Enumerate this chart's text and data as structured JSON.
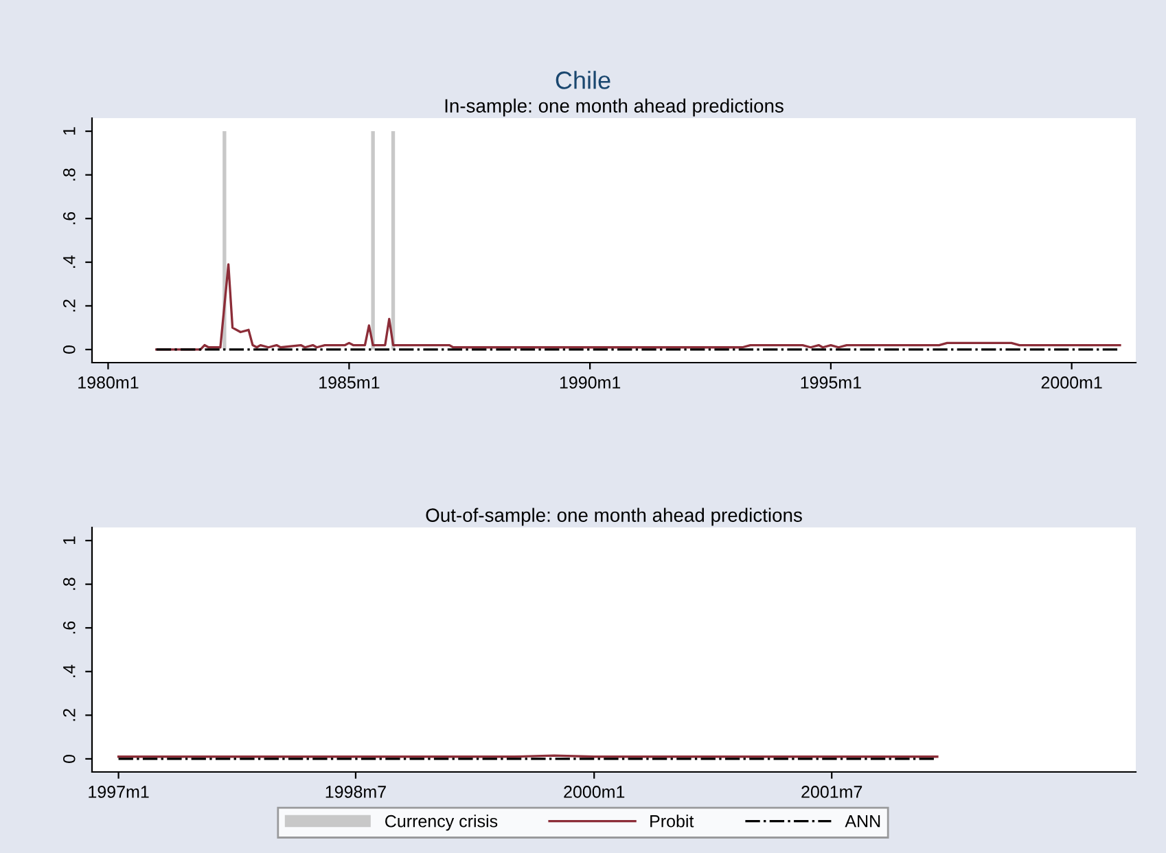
{
  "chart_data": [
    {
      "type": "line",
      "title": "Chile",
      "subtitle": "In-sample: one month ahead predictions",
      "xlim": [
        "1979-09",
        "2001-05"
      ],
      "xticks": [
        {
          "value": "1980-01",
          "label": "1980m1"
        },
        {
          "value": "1985-01",
          "label": "1985m1"
        },
        {
          "value": "1990-01",
          "label": "1990m1"
        },
        {
          "value": "1995-01",
          "label": "1995m1"
        },
        {
          "value": "2000-01",
          "label": "2000m1"
        }
      ],
      "ylim": [
        -0.06,
        1.06
      ],
      "yticks": [
        {
          "value": 0,
          "label": "0"
        },
        {
          "value": 0.2,
          "label": ".2"
        },
        {
          "value": 0.4,
          "label": ".4"
        },
        {
          "value": 0.6,
          "label": ".6"
        },
        {
          "value": 0.8,
          "label": ".8"
        },
        {
          "value": 1,
          "label": "1"
        }
      ],
      "grid": false,
      "legend": "bottom",
      "series": [
        {
          "name": "Currency crisis",
          "type": "bar",
          "color": "#c8c8c8",
          "x": [
            "1982-06",
            "1985-07",
            "1985-12"
          ],
          "values": [
            1,
            1,
            1
          ]
        },
        {
          "name": "Probit",
          "color": "#8c2d38",
          "line_style": "solid",
          "x": [
            "1981-01",
            "1981-12",
            "1982-01",
            "1982-02",
            "1982-05",
            "1982-07",
            "1982-08",
            "1982-10",
            "1982-12",
            "1983-01",
            "1983-02",
            "1983-03",
            "1983-05",
            "1983-07",
            "1983-08",
            "1984-01",
            "1984-02",
            "1984-04",
            "1984-05",
            "1984-07",
            "1984-12",
            "1985-01",
            "1985-02",
            "1985-05",
            "1985-06",
            "1985-07",
            "1985-10",
            "1985-11",
            "1985-12",
            "1987-02",
            "1987-03",
            "1993-03",
            "1993-05",
            "1994-06",
            "1994-08",
            "1994-10",
            "1994-11",
            "1995-01",
            "1995-03",
            "1995-05",
            "1997-04",
            "1997-06",
            "1998-10",
            "1998-12",
            "2001-01"
          ],
          "values": [
            0.0,
            0.0,
            0.02,
            0.01,
            0.01,
            0.39,
            0.1,
            0.08,
            0.09,
            0.02,
            0.01,
            0.02,
            0.01,
            0.02,
            0.01,
            0.02,
            0.01,
            0.02,
            0.01,
            0.02,
            0.02,
            0.03,
            0.02,
            0.02,
            0.11,
            0.02,
            0.02,
            0.14,
            0.02,
            0.02,
            0.01,
            0.01,
            0.02,
            0.02,
            0.01,
            0.02,
            0.01,
            0.02,
            0.01,
            0.02,
            0.02,
            0.03,
            0.03,
            0.02,
            0.02
          ]
        },
        {
          "name": "ANN",
          "color": "#000000",
          "line_style": "dashdot",
          "x": [
            "1981-01",
            "2001-01"
          ],
          "values": [
            0,
            0
          ]
        }
      ]
    },
    {
      "type": "line",
      "title": "Out-of-sample: one month ahead predictions",
      "xlim": [
        "1996-11",
        "2003-06"
      ],
      "xticks": [
        {
          "value": "1997-01",
          "label": "1997m1"
        },
        {
          "value": "1998-07",
          "label": "1998m7"
        },
        {
          "value": "2000-01",
          "label": "2000m1"
        },
        {
          "value": "2001-07",
          "label": "2001m7"
        }
      ],
      "ylim": [
        -0.06,
        1.06
      ],
      "yticks": [
        {
          "value": 0,
          "label": "0"
        },
        {
          "value": 0.2,
          "label": ".2"
        },
        {
          "value": 0.4,
          "label": ".4"
        },
        {
          "value": 0.6,
          "label": ".6"
        },
        {
          "value": 0.8,
          "label": ".8"
        },
        {
          "value": 1,
          "label": "1"
        }
      ],
      "grid": false,
      "legend": "bottom",
      "series": [
        {
          "name": "Probit",
          "color": "#8c2d38",
          "line_style": "solid",
          "x": [
            "1997-01",
            "1999-07",
            "1999-10",
            "2000-01",
            "2002-03"
          ],
          "values": [
            0.01,
            0.01,
            0.015,
            0.01,
            0.01
          ]
        },
        {
          "name": "ANN",
          "color": "#000000",
          "line_style": "dashdot",
          "x": [
            "1997-01",
            "2002-03"
          ],
          "values": [
            0,
            0
          ]
        }
      ]
    }
  ]
}
